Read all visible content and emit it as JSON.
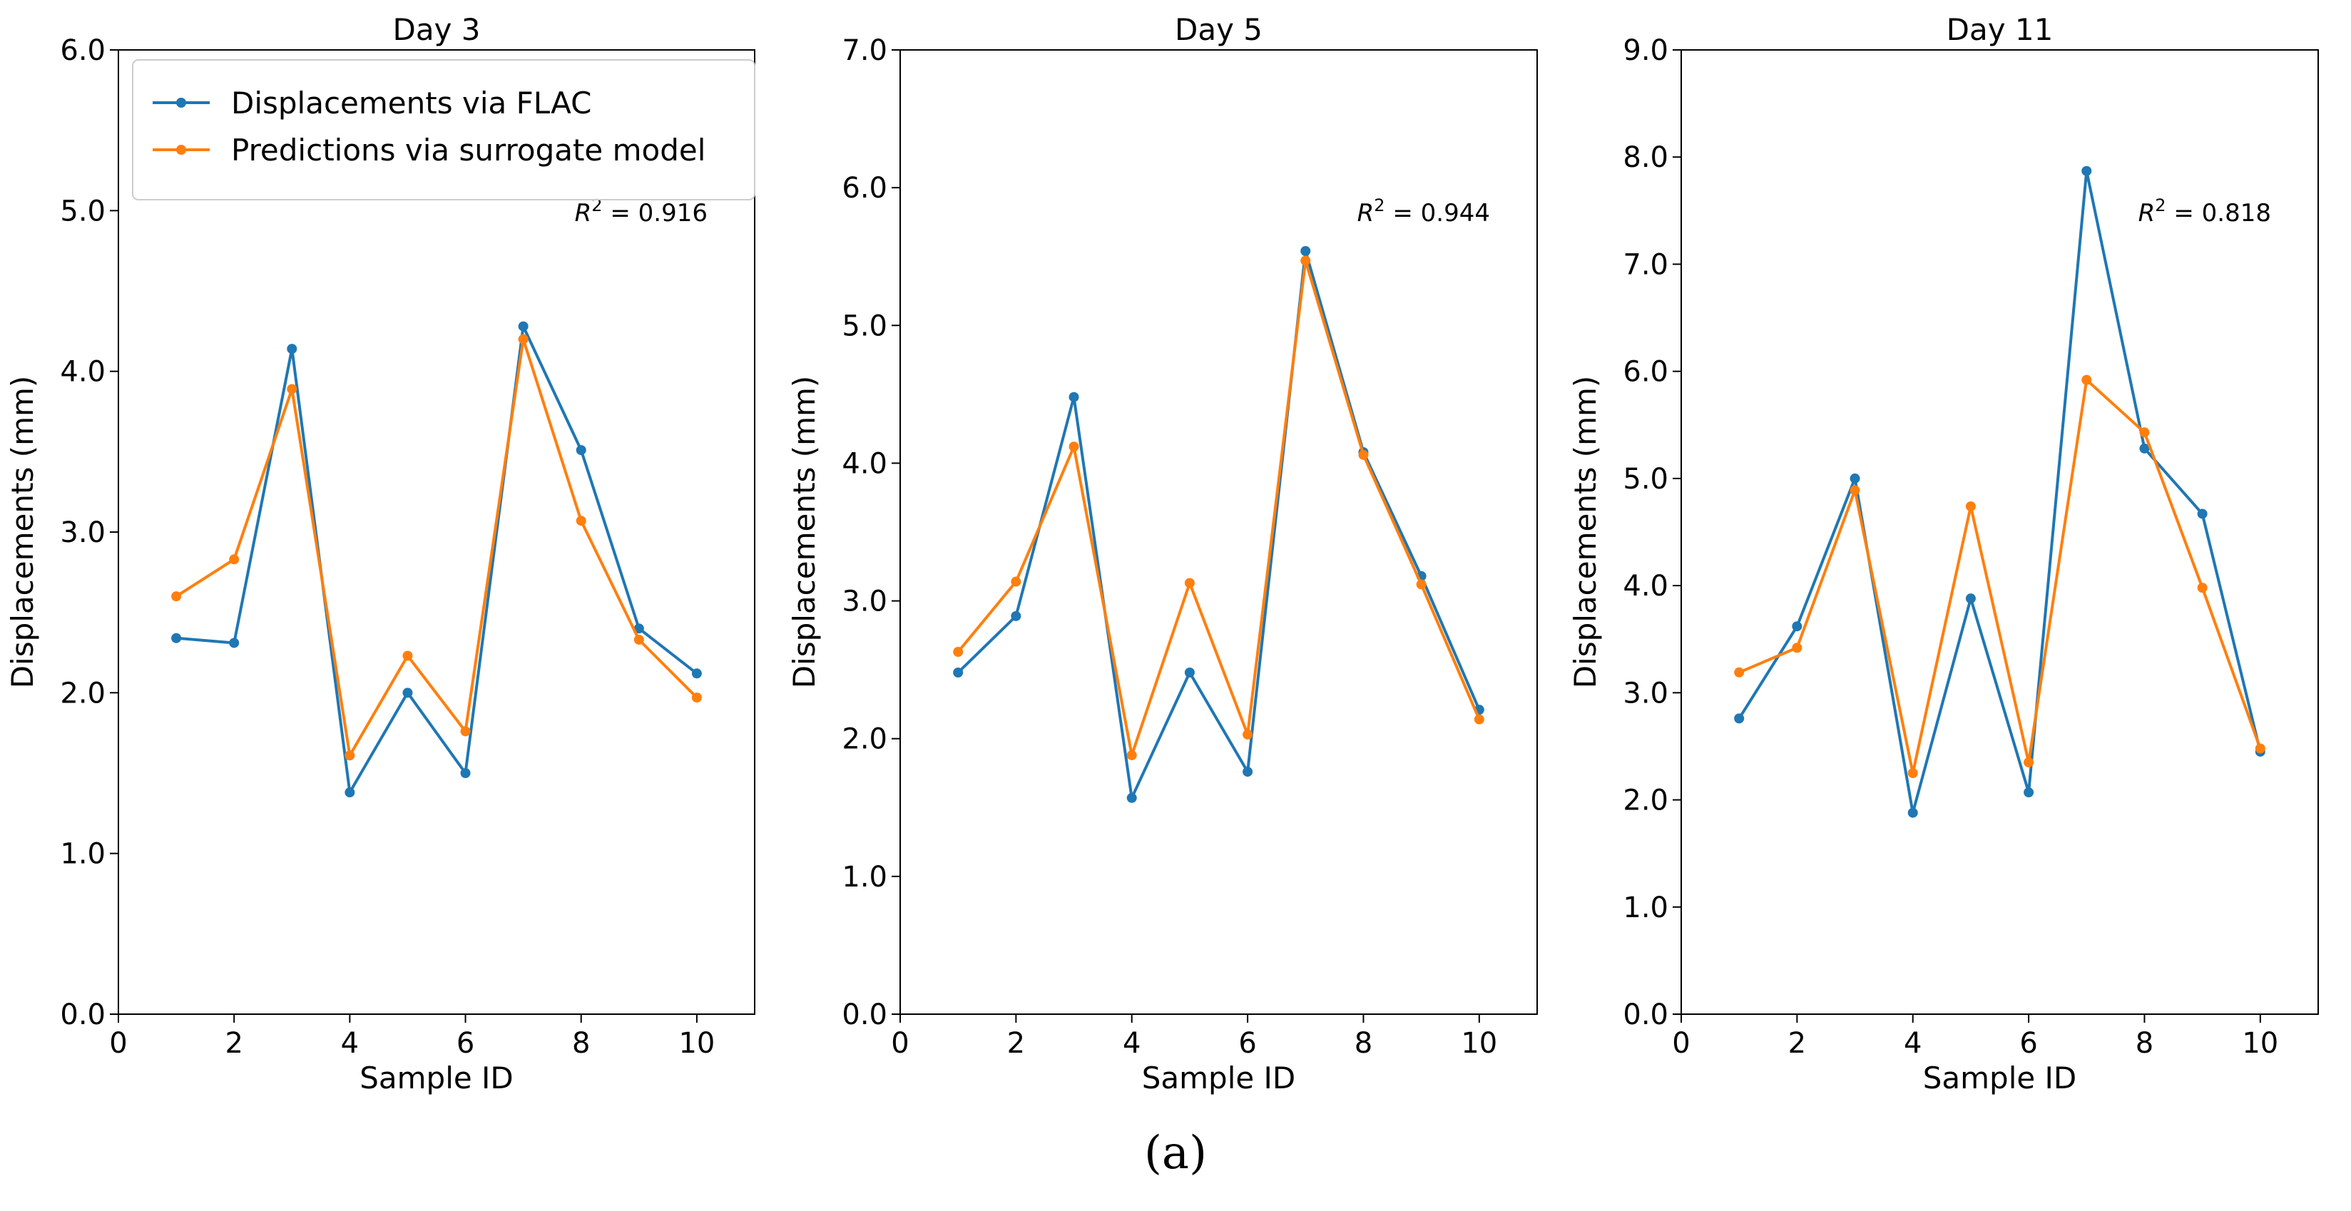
{
  "figure": {
    "caption": "(a)"
  },
  "colors": {
    "flac": "#1f77b4",
    "surrogate": "#ff7f0e"
  },
  "legend": {
    "placement": "top-left",
    "shown_in_panel": 0
  },
  "chart_data": [
    {
      "type": "line",
      "title": "Day 3",
      "xlabel": "Sample ID",
      "ylabel": "Displacements (mm)",
      "xlim": [
        0,
        11
      ],
      "ylim": [
        0,
        6
      ],
      "xticks": [
        0,
        2,
        4,
        6,
        8,
        10
      ],
      "yticks": [
        0,
        1,
        2,
        3,
        4,
        5,
        6
      ],
      "ytick_labels": [
        "0.0",
        "1.0",
        "2.0",
        "3.0",
        "4.0",
        "5.0",
        "6.0"
      ],
      "grid": false,
      "annotation": {
        "label": "R",
        "sup": "2",
        "value": " = 0.916"
      },
      "x": [
        1,
        2,
        3,
        4,
        5,
        6,
        7,
        8,
        9,
        10
      ],
      "series": [
        {
          "name": "Displacements via FLAC",
          "color": "#1f77b4",
          "values": [
            2.34,
            2.31,
            4.14,
            1.38,
            2.0,
            1.5,
            4.28,
            3.51,
            2.4,
            2.12
          ]
        },
        {
          "name": "Predictions via surrogate model",
          "color": "#ff7f0e",
          "values": [
            2.6,
            2.83,
            3.89,
            1.61,
            2.23,
            1.76,
            4.2,
            3.07,
            2.33,
            1.97
          ]
        }
      ]
    },
    {
      "type": "line",
      "title": "Day 5",
      "xlabel": "Sample ID",
      "ylabel": "Displacements (mm)",
      "xlim": [
        0,
        11
      ],
      "ylim": [
        0,
        7
      ],
      "xticks": [
        0,
        2,
        4,
        6,
        8,
        10
      ],
      "yticks": [
        0,
        1,
        2,
        3,
        4,
        5,
        6,
        7
      ],
      "ytick_labels": [
        "0.0",
        "1.0",
        "2.0",
        "3.0",
        "4.0",
        "5.0",
        "6.0",
        "7.0"
      ],
      "grid": false,
      "annotation": {
        "label": "R",
        "sup": "2",
        "value": " = 0.944"
      },
      "x": [
        1,
        2,
        3,
        4,
        5,
        6,
        7,
        8,
        9,
        10
      ],
      "series": [
        {
          "name": "Displacements via FLAC",
          "color": "#1f77b4",
          "values": [
            2.48,
            2.89,
            4.48,
            1.57,
            2.48,
            1.76,
            5.54,
            4.08,
            3.18,
            2.21
          ]
        },
        {
          "name": "Predictions via surrogate model",
          "color": "#ff7f0e",
          "values": [
            2.63,
            3.14,
            4.12,
            1.88,
            3.13,
            2.03,
            5.47,
            4.06,
            3.12,
            2.14
          ]
        }
      ]
    },
    {
      "type": "line",
      "title": "Day 11",
      "xlabel": "Sample ID",
      "ylabel": "Displacements (mm)",
      "xlim": [
        0,
        11
      ],
      "ylim": [
        0,
        9
      ],
      "xticks": [
        0,
        2,
        4,
        6,
        8,
        10
      ],
      "yticks": [
        0,
        1,
        2,
        3,
        4,
        5,
        6,
        7,
        8,
        9
      ],
      "ytick_labels": [
        "0.0",
        "1.0",
        "2.0",
        "3.0",
        "4.0",
        "5.0",
        "6.0",
        "7.0",
        "8.0",
        "9.0"
      ],
      "grid": false,
      "annotation": {
        "label": "R",
        "sup": "2",
        "value": " = 0.818"
      },
      "x": [
        1,
        2,
        3,
        4,
        5,
        6,
        7,
        8,
        9,
        10
      ],
      "series": [
        {
          "name": "Displacements via FLAC",
          "color": "#1f77b4",
          "values": [
            2.76,
            3.62,
            5.0,
            1.88,
            3.88,
            2.07,
            7.87,
            5.28,
            4.67,
            2.45
          ]
        },
        {
          "name": "Predictions via surrogate model",
          "color": "#ff7f0e",
          "values": [
            3.19,
            3.42,
            4.89,
            2.25,
            4.74,
            2.35,
            5.92,
            5.43,
            3.98,
            2.48
          ]
        }
      ]
    }
  ]
}
